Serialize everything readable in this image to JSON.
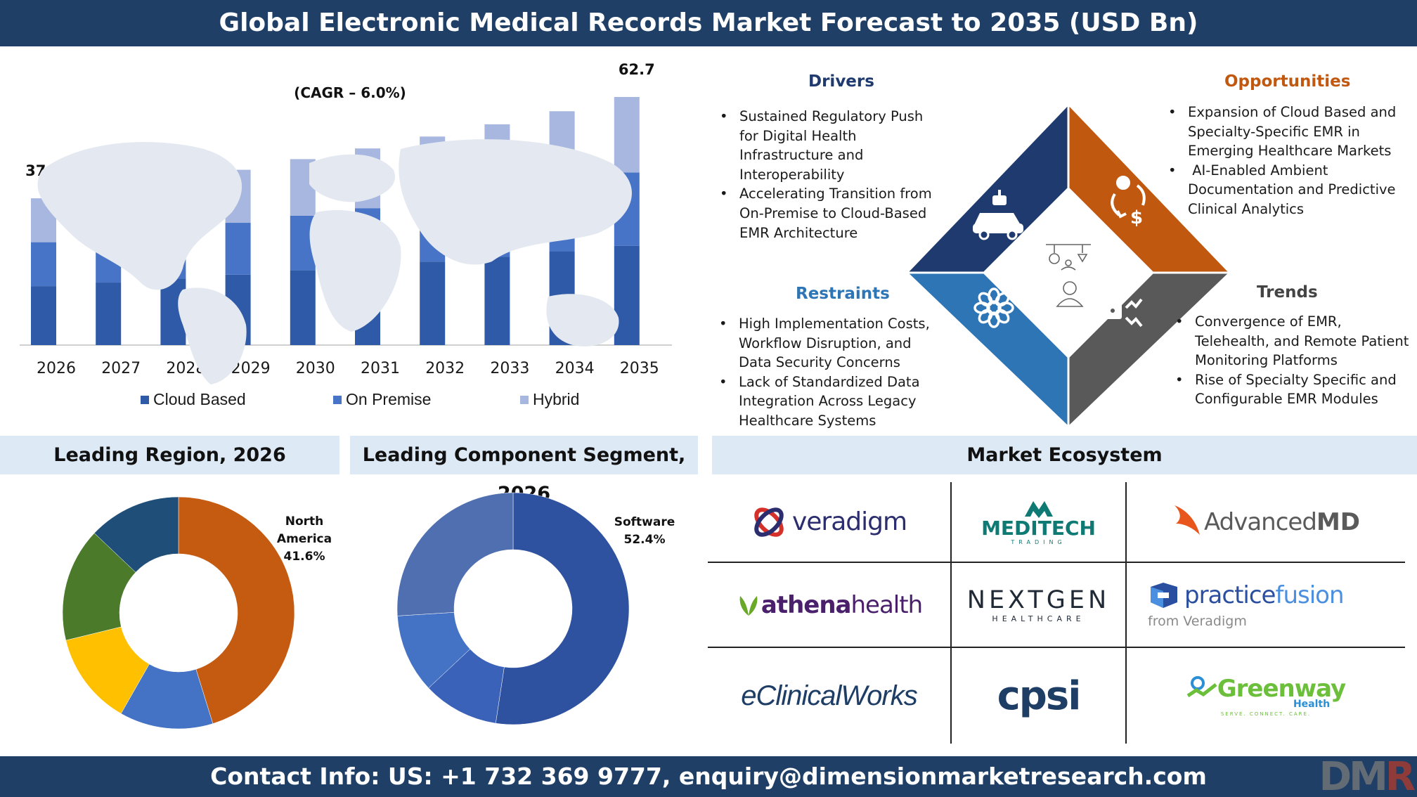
{
  "header": {
    "title": "Global Electronic Medical Records Market Forecast to 2035 (USD Bn)"
  },
  "footer": {
    "contact": "Contact Info: US: +1 732 369 9777, enquiry@dimensionmarketresearch.com"
  },
  "logo": {
    "text_d": "DM",
    "text_r": "R"
  },
  "colors": {
    "banner": "#1f3f66",
    "cloud": "#2f5aa8",
    "premise": "#4774c6",
    "hybrid": "#a7b7e0",
    "drivers": "#1f3a6e",
    "opportunities": "#c0580f",
    "restraints": "#2e75b6",
    "trends": "#595959"
  },
  "chart_data": [
    {
      "type": "bar",
      "stacked": true,
      "categories": [
        "2026",
        "2027",
        "2028",
        "2029",
        "2030",
        "2031",
        "2032",
        "2033",
        "2034",
        "2035"
      ],
      "series": [
        {
          "name": "Cloud Based",
          "values": [
            14.9,
            15.8,
            16.8,
            17.8,
            18.9,
            19.9,
            21.1,
            22.3,
            23.7,
            25.1
          ]
        },
        {
          "name": "On Premise",
          "values": [
            11.1,
            11.7,
            12.4,
            13.1,
            13.8,
            14.7,
            15.6,
            16.5,
            17.4,
            18.5
          ]
        },
        {
          "name": "Hybrid",
          "values": [
            11.1,
            11.9,
            12.6,
            13.4,
            14.3,
            15.1,
            16.0,
            17.0,
            18.0,
            19.1
          ]
        }
      ],
      "totals_labeled": {
        "2026": "37.1",
        "2035": "62.7"
      },
      "annotation": "(CAGR – 6.0%)",
      "ylim": [
        0,
        70
      ],
      "legend_position": "bottom",
      "grid": false
    },
    {
      "type": "pie",
      "title": "Leading Region, 2026",
      "donut": true,
      "values": [
        41.6,
        12.0,
        11.9,
        14.6,
        11.9
      ],
      "colors": [
        "#c55a11",
        "#4472c4",
        "#ffc000",
        "#4a7a2a",
        "#1f4e79"
      ],
      "label": {
        "line1": "North",
        "line2": "America",
        "value": "41.6%"
      }
    },
    {
      "type": "pie",
      "title": "Leading Component Segment, 2026",
      "donut": true,
      "values": [
        52.4,
        10.6,
        11.0,
        26.0
      ],
      "colors": [
        "#2f52a0",
        "#3a62b8",
        "#4472c4",
        "#4f6fb0"
      ],
      "label": {
        "line1": "Software",
        "value": "52.4%"
      }
    }
  ],
  "quadrants": {
    "drivers": {
      "title": "Drivers",
      "items": [
        [
          "Sustained Regulatory Push",
          "for Digital Health",
          "Infrastructure and",
          "Interoperability"
        ],
        [
          "Accelerating Transition from",
          "On-Premise to Cloud-Based",
          "EMR Architecture"
        ]
      ]
    },
    "opportunities": {
      "title": "Opportunities",
      "items": [
        [
          "Expansion of Cloud Based and",
          "Specialty-Specific EMR in",
          "Emerging Healthcare Markets"
        ],
        [
          " AI-Enabled Ambient",
          "Documentation and Predictive",
          "Clinical Analytics"
        ]
      ]
    },
    "restraints": {
      "title": "Restraints",
      "items": [
        [
          "High Implementation Costs,",
          "Workflow Disruption, and",
          "Data Security Concerns"
        ],
        [
          "Lack of Standardized Data",
          "Integration Across Legacy",
          "Healthcare Systems"
        ]
      ]
    },
    "trends": {
      "title": "Trends",
      "items": [
        [
          "Convergence of EMR,",
          "Telehealth, and Remote Patient",
          "Monitoring Platforms"
        ],
        [
          "Rise of Specialty Specific and",
          "Configurable EMR Modules"
        ]
      ]
    }
  },
  "sections": {
    "region": "Leading Region, 2026",
    "component": "Leading Component Segment, 2026",
    "ecosystem": "Market Ecosystem"
  },
  "ecosystem": {
    "veradigm": "veradigm",
    "meditech": "MEDITECH",
    "meditech_sub": "TRADING",
    "advancedmd_a": "Advanced",
    "advancedmd_b": "MD",
    "athena_a": "athena",
    "athena_b": "health",
    "nextgen": "NEXTGEN",
    "nextgen_sub": "HEALTHCARE",
    "pf_a": "practice",
    "pf_b": "fusion",
    "pf_sub": "from Veradigm",
    "eclinical": "eClinicalWorks",
    "cpsi": "cpsi",
    "greenway": "Greenway",
    "greenway_health": "Health",
    "greenway_tag": "SERVE. CONNECT. CARE."
  }
}
